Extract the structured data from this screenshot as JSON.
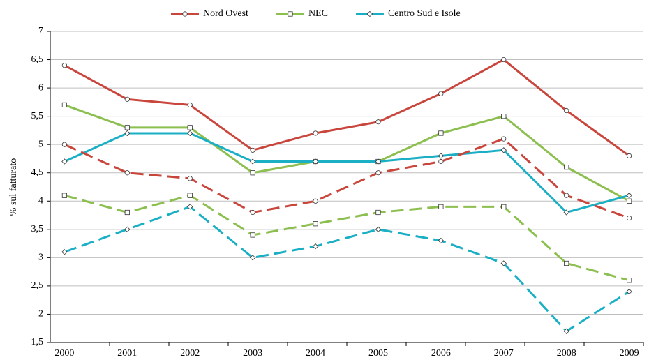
{
  "chart_data": {
    "type": "line",
    "y_label": "% sul fatturato",
    "categories": [
      "2000",
      "2001",
      "2002",
      "2003",
      "2004",
      "2005",
      "2006",
      "2007",
      "2008",
      "2009"
    ],
    "series": [
      {
        "name": "Nord Ovest",
        "color": "#c9463d",
        "marker": "circle",
        "dash": false,
        "values": [
          6.4,
          5.8,
          5.7,
          4.9,
          5.2,
          5.4,
          5.9,
          6.5,
          5.6,
          4.8
        ]
      },
      {
        "name": "NEC",
        "color": "#8cbf4f",
        "marker": "square",
        "dash": false,
        "values": [
          5.7,
          5.3,
          5.3,
          4.5,
          4.7,
          4.7,
          5.2,
          5.5,
          4.6,
          4.0
        ]
      },
      {
        "name": "Centro Sud e Isole",
        "color": "#1aafc4",
        "marker": "diamond",
        "dash": false,
        "values": [
          4.7,
          5.2,
          5.2,
          4.7,
          4.7,
          4.7,
          4.8,
          4.9,
          3.8,
          4.1
        ]
      },
      {
        "color": "#c9463d",
        "marker": "circle",
        "dash": true,
        "values": [
          5.0,
          4.5,
          4.4,
          3.8,
          4.0,
          4.5,
          4.7,
          5.1,
          4.1,
          3.7
        ]
      },
      {
        "color": "#8cbf4f",
        "marker": "square",
        "dash": true,
        "values": [
          4.1,
          3.8,
          4.1,
          3.4,
          3.6,
          3.8,
          3.9,
          3.9,
          2.9,
          2.6
        ]
      },
      {
        "color": "#1aafc4",
        "marker": "diamond",
        "dash": true,
        "values": [
          3.1,
          3.5,
          3.9,
          3.0,
          3.2,
          3.5,
          3.3,
          2.9,
          1.7,
          2.4
        ]
      }
    ],
    "ylim": [
      1.5,
      7
    ],
    "yticks": [
      {
        "value": 1.5,
        "label": "1,5"
      },
      2,
      {
        "value": 2.5,
        "label": "2,5"
      },
      3,
      {
        "value": 3.5,
        "label": "3,5"
      },
      4,
      {
        "value": 4.5,
        "label": "4,5"
      },
      5,
      {
        "value": 5.5,
        "label": "5,5"
      },
      6,
      {
        "value": 6.5,
        "label": "6,5"
      },
      7
    ],
    "grid": true
  }
}
